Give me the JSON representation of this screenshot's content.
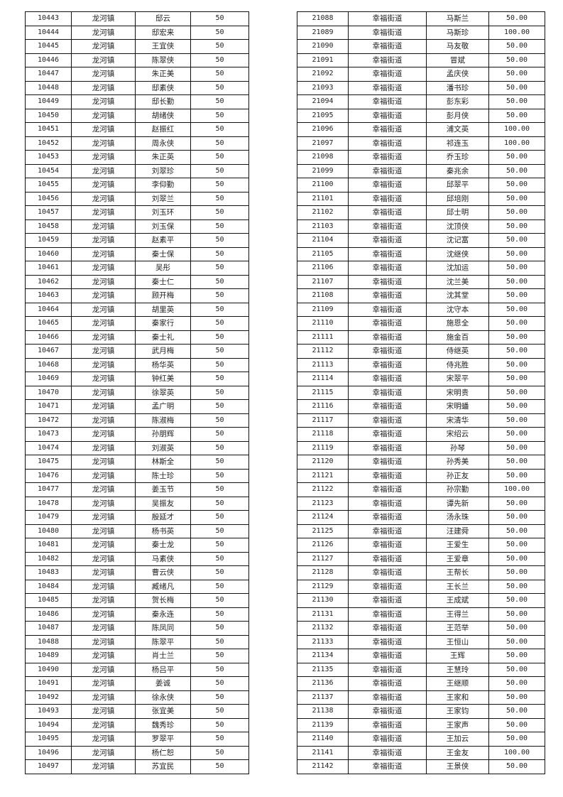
{
  "left_table": {
    "district": "龙河镇",
    "rows": [
      [
        "10443",
        "龙河镇",
        "邸云",
        "50"
      ],
      [
        "10444",
        "龙河镇",
        "邸宏来",
        "50"
      ],
      [
        "10445",
        "龙河镇",
        "王宜侠",
        "50"
      ],
      [
        "10446",
        "龙河镇",
        "陈翠侠",
        "50"
      ],
      [
        "10447",
        "龙河镇",
        "朱正美",
        "50"
      ],
      [
        "10448",
        "龙河镇",
        "邸素侠",
        "50"
      ],
      [
        "10449",
        "龙河镇",
        "邸长勤",
        "50"
      ],
      [
        "10450",
        "龙河镇",
        "胡绪侠",
        "50"
      ],
      [
        "10451",
        "龙河镇",
        "赵振红",
        "50"
      ],
      [
        "10452",
        "龙河镇",
        "周永侠",
        "50"
      ],
      [
        "10453",
        "龙河镇",
        "朱正英",
        "50"
      ],
      [
        "10454",
        "龙河镇",
        "刘翠珍",
        "50"
      ],
      [
        "10455",
        "龙河镇",
        "李仰勤",
        "50"
      ],
      [
        "10456",
        "龙河镇",
        "刘翠兰",
        "50"
      ],
      [
        "10457",
        "龙河镇",
        "刘玉环",
        "50"
      ],
      [
        "10458",
        "龙河镇",
        "刘玉保",
        "50"
      ],
      [
        "10459",
        "龙河镇",
        "赵素平",
        "50"
      ],
      [
        "10460",
        "龙河镇",
        "秦士保",
        "50"
      ],
      [
        "10461",
        "龙河镇",
        "吴彤",
        "50"
      ],
      [
        "10462",
        "龙河镇",
        "秦士仁",
        "50"
      ],
      [
        "10463",
        "龙河镇",
        "顾开梅",
        "50"
      ],
      [
        "10464",
        "龙河镇",
        "胡里英",
        "50"
      ],
      [
        "10465",
        "龙河镇",
        "秦家行",
        "50"
      ],
      [
        "10466",
        "龙河镇",
        "秦士礼",
        "50"
      ],
      [
        "10467",
        "龙河镇",
        "武月梅",
        "50"
      ],
      [
        "10468",
        "龙河镇",
        "杨华英",
        "50"
      ],
      [
        "10469",
        "龙河镇",
        "钟红美",
        "50"
      ],
      [
        "10470",
        "龙河镇",
        "徐翠英",
        "50"
      ],
      [
        "10471",
        "龙河镇",
        "孟广明",
        "50"
      ],
      [
        "10472",
        "龙河镇",
        "陈淑梅",
        "50"
      ],
      [
        "10473",
        "龙河镇",
        "孙朋辉",
        "50"
      ],
      [
        "10474",
        "龙河镇",
        "刘淑英",
        "50"
      ],
      [
        "10475",
        "龙河镇",
        "林斯全",
        "50"
      ],
      [
        "10476",
        "龙河镇",
        "陈士珍",
        "50"
      ],
      [
        "10477",
        "龙河镇",
        "姜玉节",
        "50"
      ],
      [
        "10478",
        "龙河镇",
        "吴振友",
        "50"
      ],
      [
        "10479",
        "龙河镇",
        "殷延才",
        "50"
      ],
      [
        "10480",
        "龙河镇",
        "杨书英",
        "50"
      ],
      [
        "10481",
        "龙河镇",
        "秦士龙",
        "50"
      ],
      [
        "10482",
        "龙河镇",
        "马素侠",
        "50"
      ],
      [
        "10483",
        "龙河镇",
        "曹云侠",
        "50"
      ],
      [
        "10484",
        "龙河镇",
        "臧绪凡",
        "50"
      ],
      [
        "10485",
        "龙河镇",
        "贺长梅",
        "50"
      ],
      [
        "10486",
        "龙河镇",
        "秦永连",
        "50"
      ],
      [
        "10487",
        "龙河镇",
        "陈凤同",
        "50"
      ],
      [
        "10488",
        "龙河镇",
        "陈翠平",
        "50"
      ],
      [
        "10489",
        "龙河镇",
        "肖士兰",
        "50"
      ],
      [
        "10490",
        "龙河镇",
        "杨吕平",
        "50"
      ],
      [
        "10491",
        "龙河镇",
        "姜诚",
        "50"
      ],
      [
        "10492",
        "龙河镇",
        "徐永侠",
        "50"
      ],
      [
        "10493",
        "龙河镇",
        "张宜美",
        "50"
      ],
      [
        "10494",
        "龙河镇",
        "魏秀珍",
        "50"
      ],
      [
        "10495",
        "龙河镇",
        "罗翠平",
        "50"
      ],
      [
        "10496",
        "龙河镇",
        "杨仁恕",
        "50"
      ],
      [
        "10497",
        "龙河镇",
        "苏宜民",
        "50"
      ]
    ]
  },
  "right_table": {
    "district": "幸福街道",
    "rows": [
      [
        "21088",
        "幸福街道",
        "马斯兰",
        "50.00"
      ],
      [
        "21089",
        "幸福街道",
        "马斯珍",
        "100.00"
      ],
      [
        "21090",
        "幸福街道",
        "马友敬",
        "50.00"
      ],
      [
        "21091",
        "幸福街道",
        "冒斌",
        "50.00"
      ],
      [
        "21092",
        "幸福街道",
        "孟庆侠",
        "50.00"
      ],
      [
        "21093",
        "幸福街道",
        "潘书珍",
        "50.00"
      ],
      [
        "21094",
        "幸福街道",
        "彭东彩",
        "50.00"
      ],
      [
        "21095",
        "幸福街道",
        "彭月侠",
        "50.00"
      ],
      [
        "21096",
        "幸福街道",
        "浦文英",
        "100.00"
      ],
      [
        "21097",
        "幸福街道",
        "祁连玉",
        "100.00"
      ],
      [
        "21098",
        "幸福街道",
        "乔玉珍",
        "50.00"
      ],
      [
        "21099",
        "幸福街道",
        "秦兆余",
        "50.00"
      ],
      [
        "21100",
        "幸福街道",
        "邱翠平",
        "50.00"
      ],
      [
        "21101",
        "幸福街道",
        "邱培刚",
        "50.00"
      ],
      [
        "21102",
        "幸福街道",
        "邱士明",
        "50.00"
      ],
      [
        "21103",
        "幸福街道",
        "沈顶侠",
        "50.00"
      ],
      [
        "21104",
        "幸福街道",
        "沈记富",
        "50.00"
      ],
      [
        "21105",
        "幸福街道",
        "沈继侠",
        "50.00"
      ],
      [
        "21106",
        "幸福街道",
        "沈加运",
        "50.00"
      ],
      [
        "21107",
        "幸福街道",
        "沈兰美",
        "50.00"
      ],
      [
        "21108",
        "幸福街道",
        "沈其堂",
        "50.00"
      ],
      [
        "21109",
        "幸福街道",
        "沈守本",
        "50.00"
      ],
      [
        "21110",
        "幸福街道",
        "施恩全",
        "50.00"
      ],
      [
        "21111",
        "幸福街道",
        "施金百",
        "50.00"
      ],
      [
        "21112",
        "幸福街道",
        "侍继英",
        "50.00"
      ],
      [
        "21113",
        "幸福街道",
        "侍兆胜",
        "50.00"
      ],
      [
        "21114",
        "幸福街道",
        "宋翠平",
        "50.00"
      ],
      [
        "21115",
        "幸福街道",
        "宋明贵",
        "50.00"
      ],
      [
        "21116",
        "幸福街道",
        "宋明蟠",
        "50.00"
      ],
      [
        "21117",
        "幸福街道",
        "宋清华",
        "50.00"
      ],
      [
        "21118",
        "幸福街道",
        "宋绍云",
        "50.00"
      ],
      [
        "21119",
        "幸福街道",
        "孙琴",
        "50.00"
      ],
      [
        "21120",
        "幸福街道",
        "孙秀美",
        "50.00"
      ],
      [
        "21121",
        "幸福街道",
        "孙正友",
        "50.00"
      ],
      [
        "21122",
        "幸福街道",
        "孙宗勤",
        "100.00"
      ],
      [
        "21123",
        "幸福街道",
        "谭先新",
        "50.00"
      ],
      [
        "21124",
        "幸福街道",
        "汤永珠",
        "50.00"
      ],
      [
        "21125",
        "幸福街道",
        "汪建舜",
        "50.00"
      ],
      [
        "21126",
        "幸福街道",
        "王爱生",
        "50.00"
      ],
      [
        "21127",
        "幸福街道",
        "王爱章",
        "50.00"
      ],
      [
        "21128",
        "幸福街道",
        "王帮长",
        "50.00"
      ],
      [
        "21129",
        "幸福街道",
        "王长兰",
        "50.00"
      ],
      [
        "21130",
        "幸福街道",
        "王成斌",
        "50.00"
      ],
      [
        "21131",
        "幸福街道",
        "王得兰",
        "50.00"
      ],
      [
        "21132",
        "幸福街道",
        "王范举",
        "50.00"
      ],
      [
        "21133",
        "幸福街道",
        "王恒山",
        "50.00"
      ],
      [
        "21134",
        "幸福街道",
        "王辉",
        "50.00"
      ],
      [
        "21135",
        "幸福街道",
        "王慧玲",
        "50.00"
      ],
      [
        "21136",
        "幸福街道",
        "王继顺",
        "50.00"
      ],
      [
        "21137",
        "幸福街道",
        "王家和",
        "50.00"
      ],
      [
        "21138",
        "幸福街道",
        "王家钧",
        "50.00"
      ],
      [
        "21139",
        "幸福街道",
        "王家声",
        "50.00"
      ],
      [
        "21140",
        "幸福街道",
        "王加云",
        "50.00"
      ],
      [
        "21141",
        "幸福街道",
        "王金友",
        "100.00"
      ],
      [
        "21142",
        "幸福街道",
        "王景侠",
        "50.00"
      ]
    ]
  }
}
